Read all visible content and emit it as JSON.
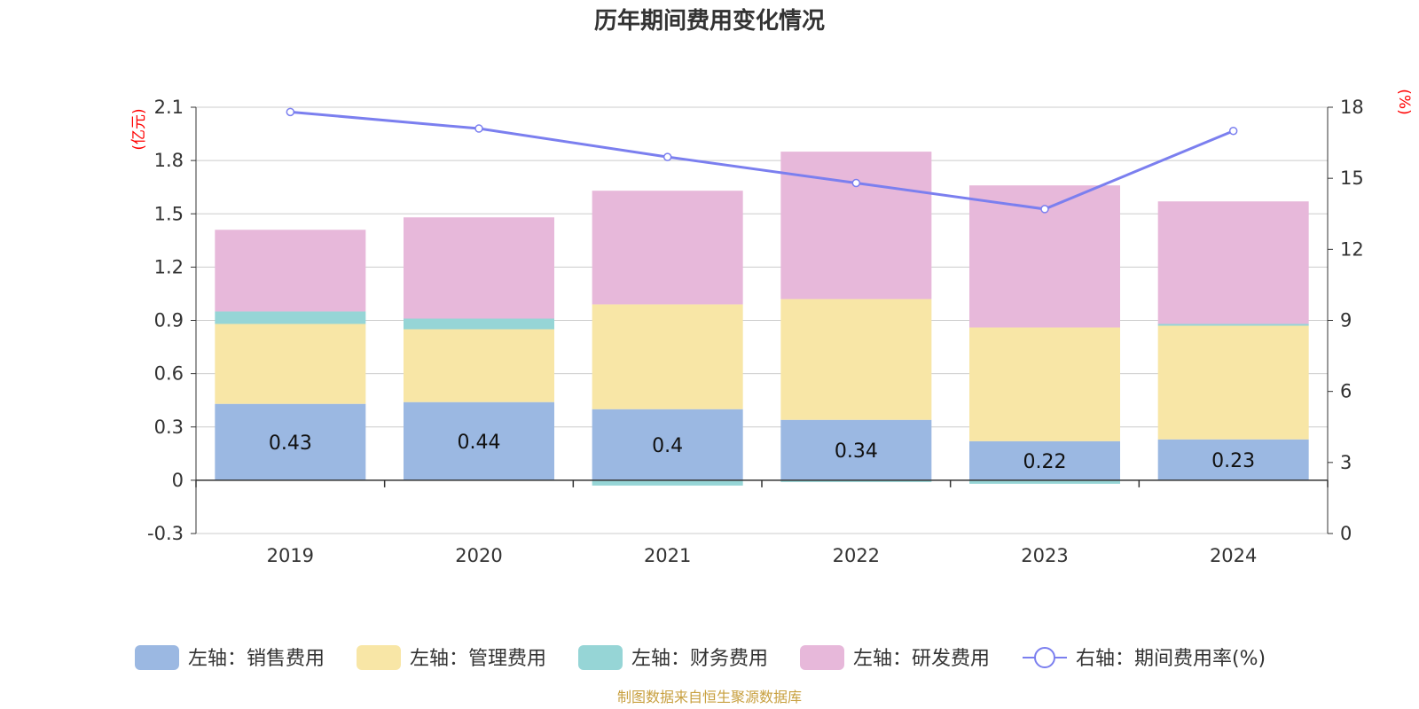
{
  "chart_data": {
    "type": "bar",
    "stacked": true,
    "title": "历年期间费用变化情况",
    "categories": [
      "2019",
      "2020",
      "2021",
      "2022",
      "2023",
      "2024"
    ],
    "left_axis": {
      "unit": "(亿元)",
      "ylim": [
        -0.3,
        2.1
      ],
      "ticks": [
        "2.1",
        "1.8",
        "1.5",
        "1.2",
        "0.9",
        "0.6",
        "0.3",
        "0",
        "-0.3"
      ],
      "tick_values": [
        2.1,
        1.8,
        1.5,
        1.2,
        0.9,
        0.6,
        0.3,
        0,
        -0.3
      ]
    },
    "right_axis": {
      "unit": "(%)",
      "ylim": [
        0,
        18
      ],
      "ticks": [
        "18",
        "15",
        "12",
        "9",
        "6",
        "3",
        "0"
      ],
      "tick_values": [
        18,
        15,
        12,
        9,
        6,
        3,
        0
      ]
    },
    "series": [
      {
        "name": "左轴：销售费用",
        "kind": "bar",
        "color": "#9bb8e2",
        "values": [
          0.43,
          0.44,
          0.4,
          0.34,
          0.22,
          0.23
        ],
        "labels": [
          "0.43",
          "0.44",
          "0.4",
          "0.34",
          "0.22",
          "0.23"
        ]
      },
      {
        "name": "左轴：管理费用",
        "kind": "bar",
        "color": "#f8e6a6",
        "values": [
          0.45,
          0.41,
          0.59,
          0.68,
          0.64,
          0.64
        ]
      },
      {
        "name": "左轴：财务费用",
        "kind": "bar",
        "color": "#96d5d6",
        "values": [
          0.07,
          0.06,
          -0.03,
          -0.01,
          -0.02,
          0.01
        ]
      },
      {
        "name": "左轴：研发费用",
        "kind": "bar",
        "color": "#e7b8da",
        "values": [
          0.46,
          0.57,
          0.64,
          0.83,
          0.8,
          0.69
        ]
      },
      {
        "name": "右轴：期间费用率(%)",
        "kind": "line",
        "color": "#7b7fef",
        "values": [
          17.8,
          17.1,
          15.9,
          14.8,
          13.7,
          17.0
        ]
      }
    ],
    "source_note": "制图数据来自恒生聚源数据库"
  }
}
